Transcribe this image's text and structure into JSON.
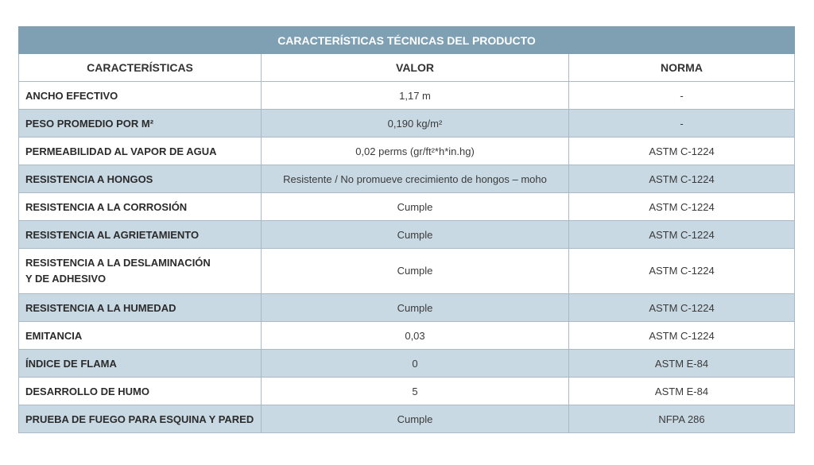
{
  "table": {
    "title": "CARACTERÍSTICAS TÉCNICAS DEL PRODUCTO",
    "headers": [
      "CARACTERÍSTICAS",
      "VALOR",
      "NORMA"
    ],
    "rows": [
      {
        "caracteristica": "ANCHO EFECTIVO",
        "valor": "1,17 m",
        "norma": "-"
      },
      {
        "caracteristica": "PESO PROMEDIO POR M²",
        "valor": "0,190 kg/m²",
        "norma": "-"
      },
      {
        "caracteristica": "PERMEABILIDAD AL VAPOR DE AGUA",
        "valor": "0,02 perms (gr/ft²*h*in.hg)",
        "norma": "ASTM C-1224"
      },
      {
        "caracteristica": "RESISTENCIA A HONGOS",
        "valor": "Resistente / No promueve crecimiento de hongos – moho",
        "norma": "ASTM C-1224"
      },
      {
        "caracteristica": "RESISTENCIA A LA CORROSIÓN",
        "valor": "Cumple",
        "norma": "ASTM C-1224"
      },
      {
        "caracteristica": "RESISTENCIA AL AGRIETAMIENTO",
        "valor": "Cumple",
        "norma": "ASTM C-1224"
      },
      {
        "caracteristica_line1": "RESISTENCIA A LA DESLAMINACIÓN",
        "caracteristica_line2": "Y DE ADHESIVO",
        "valor": "Cumple",
        "norma": "ASTM C-1224"
      },
      {
        "caracteristica": "RESISTENCIA A LA HUMEDAD",
        "valor": "Cumple",
        "norma": "ASTM C-1224"
      },
      {
        "caracteristica": "EMITANCIA",
        "valor": "0,03",
        "norma": "ASTM C-1224"
      },
      {
        "caracteristica": "ÍNDICE DE FLAMA",
        "valor": "0",
        "norma": "ASTM E-84"
      },
      {
        "caracteristica": "DESARROLLO DE HUMO",
        "valor": "5",
        "norma": "ASTM E-84"
      },
      {
        "caracteristica": "PRUEBA DE FUEGO PARA ESQUINA Y PARED",
        "valor": "Cumple",
        "norma": "NFPA 286"
      }
    ]
  }
}
